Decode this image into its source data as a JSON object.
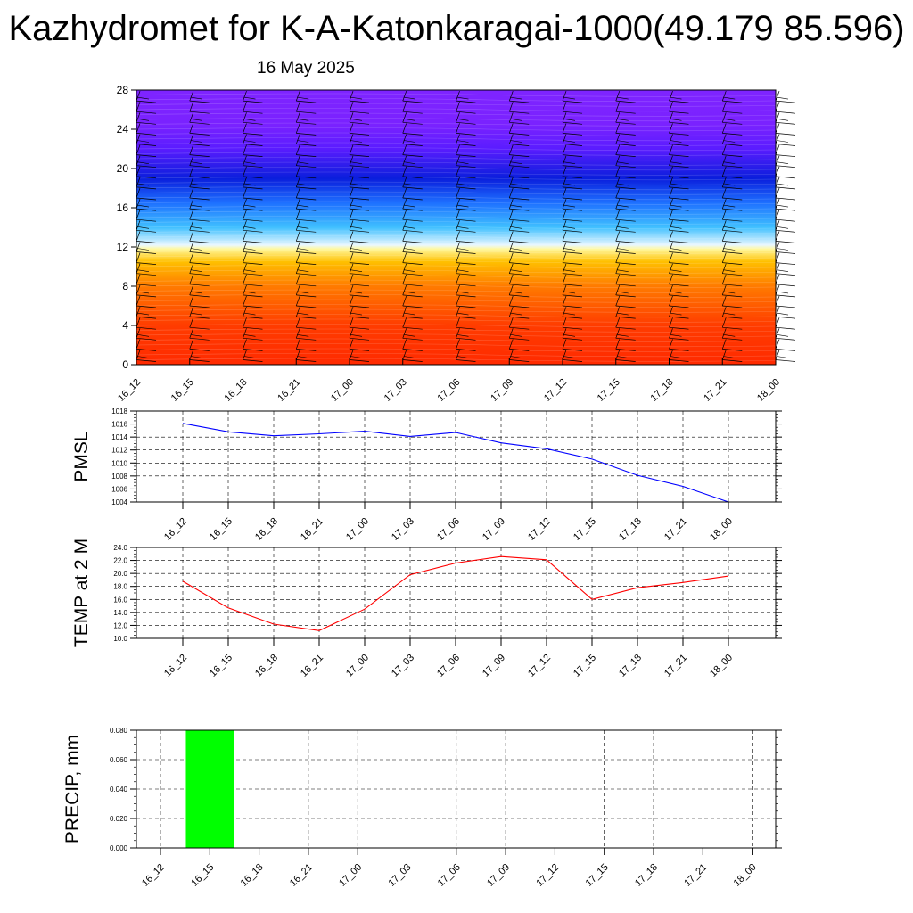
{
  "title": "Kazhydromet for K-A-Katonkaragai-1000(49.179 85.596)",
  "subtitle": "16 May 2025",
  "chart_data": [
    {
      "type": "heatmap",
      "id": "profile",
      "x_tick_labels": [
        "16_12",
        "16_15",
        "16_18",
        "16_21",
        "17_00",
        "17_03",
        "17_06",
        "17_09",
        "17_12",
        "17_15",
        "17_18",
        "17_21",
        "18_00"
      ],
      "y_ticks": [
        0,
        4,
        8,
        12,
        16,
        20,
        24,
        28
      ],
      "ylim": [
        0,
        28
      ],
      "color_bands_by_level": [
        {
          "level": 0,
          "color": "#ff2a00"
        },
        {
          "level": 4,
          "color": "#ff3c00"
        },
        {
          "level": 8,
          "color": "#ff7b00"
        },
        {
          "level": 10.5,
          "color": "#ffc000"
        },
        {
          "level": 11.8,
          "color": "#fff8a0"
        },
        {
          "level": 12.2,
          "color": "#e8f7ff"
        },
        {
          "level": 14,
          "color": "#40c0ff"
        },
        {
          "level": 16.5,
          "color": "#1e70ff"
        },
        {
          "level": 19,
          "color": "#0a1edc"
        },
        {
          "level": 22,
          "color": "#5a1cff"
        },
        {
          "level": 24.5,
          "color": "#7a22ff"
        },
        {
          "level": 28,
          "color": "#7e24ff"
        }
      ],
      "wind_barbs": true
    },
    {
      "type": "line",
      "id": "pmsl",
      "ylabel": "PMSL",
      "categories": [
        "16_12",
        "16_15",
        "16_18",
        "16_21",
        "17_00",
        "17_03",
        "17_06",
        "17_09",
        "17_12",
        "17_15",
        "17_18",
        "17_21",
        "18_00"
      ],
      "values": [
        1016.1,
        1014.8,
        1014.2,
        1014.5,
        1014.9,
        1014.1,
        1014.7,
        1013.1,
        1012.2,
        1010.6,
        1008.1,
        1006.4,
        1004.0
      ],
      "ylim": [
        1004,
        1018
      ],
      "y_ticks": [
        1004,
        1006,
        1008,
        1010,
        1012,
        1014,
        1016,
        1018
      ],
      "y_tick_labels": [
        "1004",
        "1006",
        "1008",
        "1010",
        "1012",
        "1014",
        "1016",
        "1018"
      ],
      "color": "#0000ff",
      "grid": true
    },
    {
      "type": "line",
      "id": "temp",
      "ylabel": "TEMP at 2 M",
      "categories": [
        "16_12",
        "16_15",
        "16_18",
        "16_21",
        "17_00",
        "17_03",
        "17_06",
        "17_09",
        "17_12",
        "17_15",
        "17_18",
        "17_21",
        "18_00"
      ],
      "values": [
        18.8,
        14.7,
        12.2,
        11.2,
        14.5,
        19.8,
        21.6,
        22.6,
        22.1,
        16.0,
        17.8,
        18.6,
        19.6
      ],
      "ylim": [
        10,
        24
      ],
      "y_ticks": [
        10,
        12,
        14,
        16,
        18,
        20,
        22,
        24
      ],
      "y_tick_labels": [
        "10.0",
        "12.0",
        "14.0",
        "16.0",
        "18.0",
        "20.0",
        "22.0",
        "24.0"
      ],
      "color": "#ff0000",
      "grid": true
    },
    {
      "type": "bar",
      "id": "precip",
      "ylabel": "PRECIP, mm",
      "categories": [
        "16_12",
        "16_15",
        "16_18",
        "16_21",
        "17_00",
        "17_03",
        "17_06",
        "17_09",
        "17_12",
        "17_15",
        "17_18",
        "17_21",
        "18_00"
      ],
      "values": [
        0.0,
        0.08,
        0.0,
        0.0,
        0.0,
        0.0,
        0.0,
        0.0,
        0.0,
        0.0,
        0.0,
        0.0,
        0.0
      ],
      "ylim": [
        0,
        0.08
      ],
      "y_ticks": [
        0,
        0.02,
        0.04,
        0.06,
        0.08
      ],
      "y_tick_labels": [
        "0.000",
        "0.020",
        "0.040",
        "0.060",
        "0.080"
      ],
      "color": "#00ff00",
      "grid": true
    }
  ]
}
